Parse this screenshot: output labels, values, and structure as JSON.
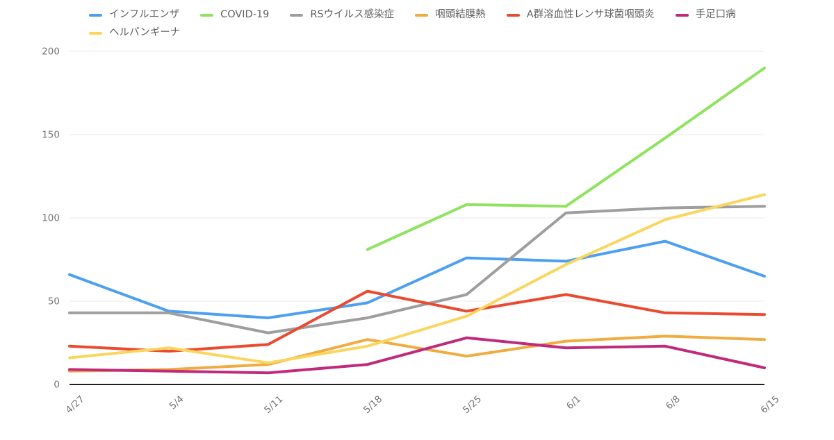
{
  "chart_data": {
    "type": "line",
    "title": "",
    "xlabel": "",
    "ylabel": "",
    "categories": [
      "4/27",
      "5/4",
      "5/11",
      "5/18",
      "5/25",
      "6/1",
      "6/8",
      "6/15"
    ],
    "series": [
      {
        "name": "インフルエンザ",
        "color": "#4DA0F0",
        "values": [
          66,
          44,
          40,
          49,
          76,
          74,
          86,
          65
        ]
      },
      {
        "name": "COVID-19",
        "color": "#8FE35F",
        "values": [
          null,
          null,
          null,
          81,
          108,
          107,
          148,
          190
        ]
      },
      {
        "name": "RSウイルス感染症",
        "color": "#9E9E9E",
        "values": [
          43,
          43,
          31,
          40,
          54,
          103,
          106,
          107
        ]
      },
      {
        "name": "咽頭結膜熱",
        "color": "#F0AC40",
        "values": [
          8,
          9,
          12,
          27,
          17,
          26,
          29,
          27
        ]
      },
      {
        "name": "A群溶血性レンサ球菌咽頭炎",
        "color": "#EA4A2F",
        "values": [
          23,
          20,
          24,
          56,
          44,
          54,
          43,
          42
        ]
      },
      {
        "name": "手足口病",
        "color": "#C02A7D",
        "values": [
          9,
          8,
          7,
          12,
          28,
          22,
          23,
          10
        ]
      },
      {
        "name": "ヘルパンギーナ",
        "color": "#FAD65F",
        "values": [
          16,
          22,
          13,
          23,
          41,
          72,
          99,
          114
        ]
      }
    ],
    "ylim": [
      0,
      200
    ],
    "yticks": [
      0,
      50,
      100,
      150,
      200
    ],
    "grid": true,
    "legend_position": "top",
    "colors": {
      "gridline": "#E8E8E8",
      "axis_line": "#212121",
      "tick_label": "#757575",
      "legend_text": "#616161",
      "background": "#FFFFFF"
    }
  }
}
